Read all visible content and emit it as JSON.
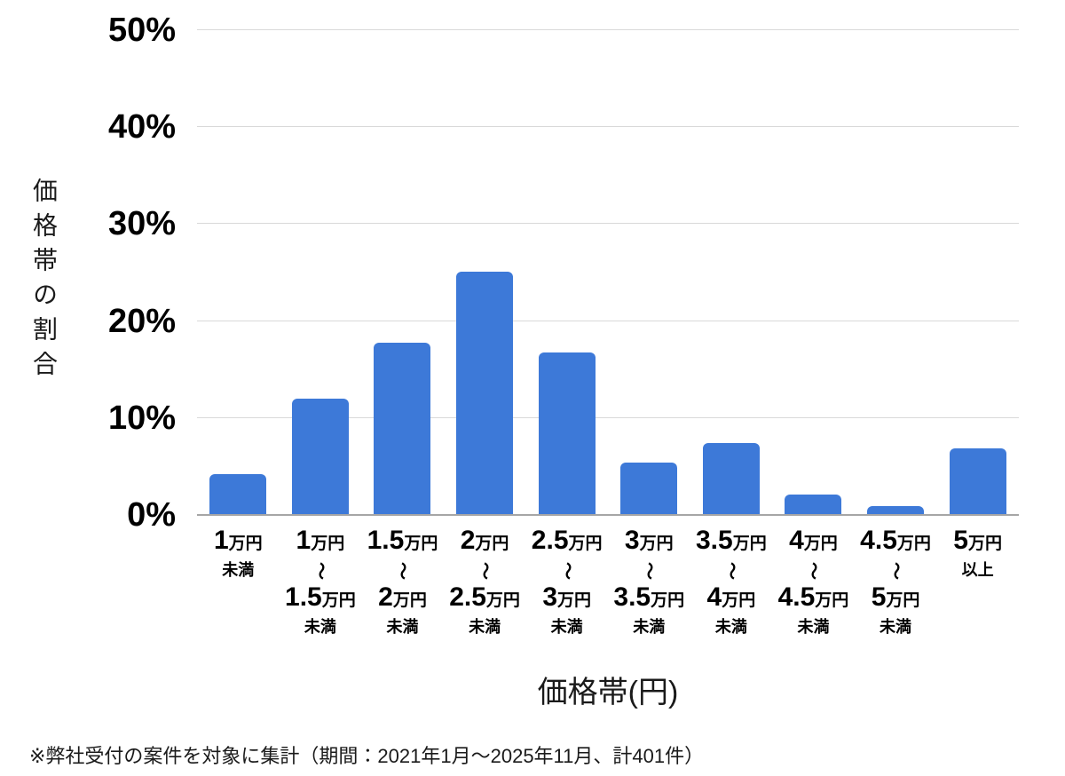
{
  "chart_data": {
    "type": "bar",
    "xlabel": "価格帯(円)",
    "ylabel": "価格帯の割合",
    "ylim": [
      0,
      50
    ],
    "grid": true,
    "legend": "none",
    "bar_color": "#3d79d8",
    "gridline_color": "#d9d9d9",
    "axis_line_color": "#a6a6a6",
    "ytick_values": [
      0,
      10,
      20,
      30,
      40,
      50
    ],
    "ytick_labels": [
      "0%",
      "10%",
      "20%",
      "30%",
      "40%",
      "50%"
    ],
    "categories": [
      "1万円未満",
      "1万円〜1.5万円未満",
      "1.5万円〜2万円未満",
      "2万円〜2.5万円未満",
      "2.5万円〜3万円未満",
      "3万円〜3.5万円未満",
      "3.5万円〜4万円未満",
      "4万円〜4.5万円未満",
      "4.5万円〜5万円未満",
      "5万円以上"
    ],
    "category_parts": [
      {
        "from_num": "1",
        "from_unit": "万円",
        "tilde": false,
        "to_num": "",
        "to_unit": "",
        "suffix": "未満"
      },
      {
        "from_num": "1",
        "from_unit": "万円",
        "tilde": true,
        "to_num": "1.5",
        "to_unit": "万円",
        "suffix": "未満"
      },
      {
        "from_num": "1.5",
        "from_unit": "万円",
        "tilde": true,
        "to_num": "2",
        "to_unit": "万円",
        "suffix": "未満"
      },
      {
        "from_num": "2",
        "from_unit": "万円",
        "tilde": true,
        "to_num": "2.5",
        "to_unit": "万円",
        "suffix": "未満"
      },
      {
        "from_num": "2.5",
        "from_unit": "万円",
        "tilde": true,
        "to_num": "3",
        "to_unit": "万円",
        "suffix": "未満"
      },
      {
        "from_num": "3",
        "from_unit": "万円",
        "tilde": true,
        "to_num": "3.5",
        "to_unit": "万円",
        "suffix": "未満"
      },
      {
        "from_num": "3.5",
        "from_unit": "万円",
        "tilde": true,
        "to_num": "4",
        "to_unit": "万円",
        "suffix": "未満"
      },
      {
        "from_num": "4",
        "from_unit": "万円",
        "tilde": true,
        "to_num": "4.5",
        "to_unit": "万円",
        "suffix": "未満"
      },
      {
        "from_num": "4.5",
        "from_unit": "万円",
        "tilde": true,
        "to_num": "5",
        "to_unit": "万円",
        "suffix": "未満"
      },
      {
        "from_num": "5",
        "from_unit": "万円",
        "tilde": false,
        "to_num": "",
        "to_unit": "",
        "suffix": "以上"
      }
    ],
    "values": [
      4.2,
      12.0,
      17.8,
      25.1,
      16.8,
      5.4,
      7.4,
      2.1,
      0.9,
      6.9
    ],
    "tilde_glyph": "〜",
    "footnote": "※弊社受付の案件を対象に集計（期間：2021年1月～2025年11月、計401件）"
  }
}
